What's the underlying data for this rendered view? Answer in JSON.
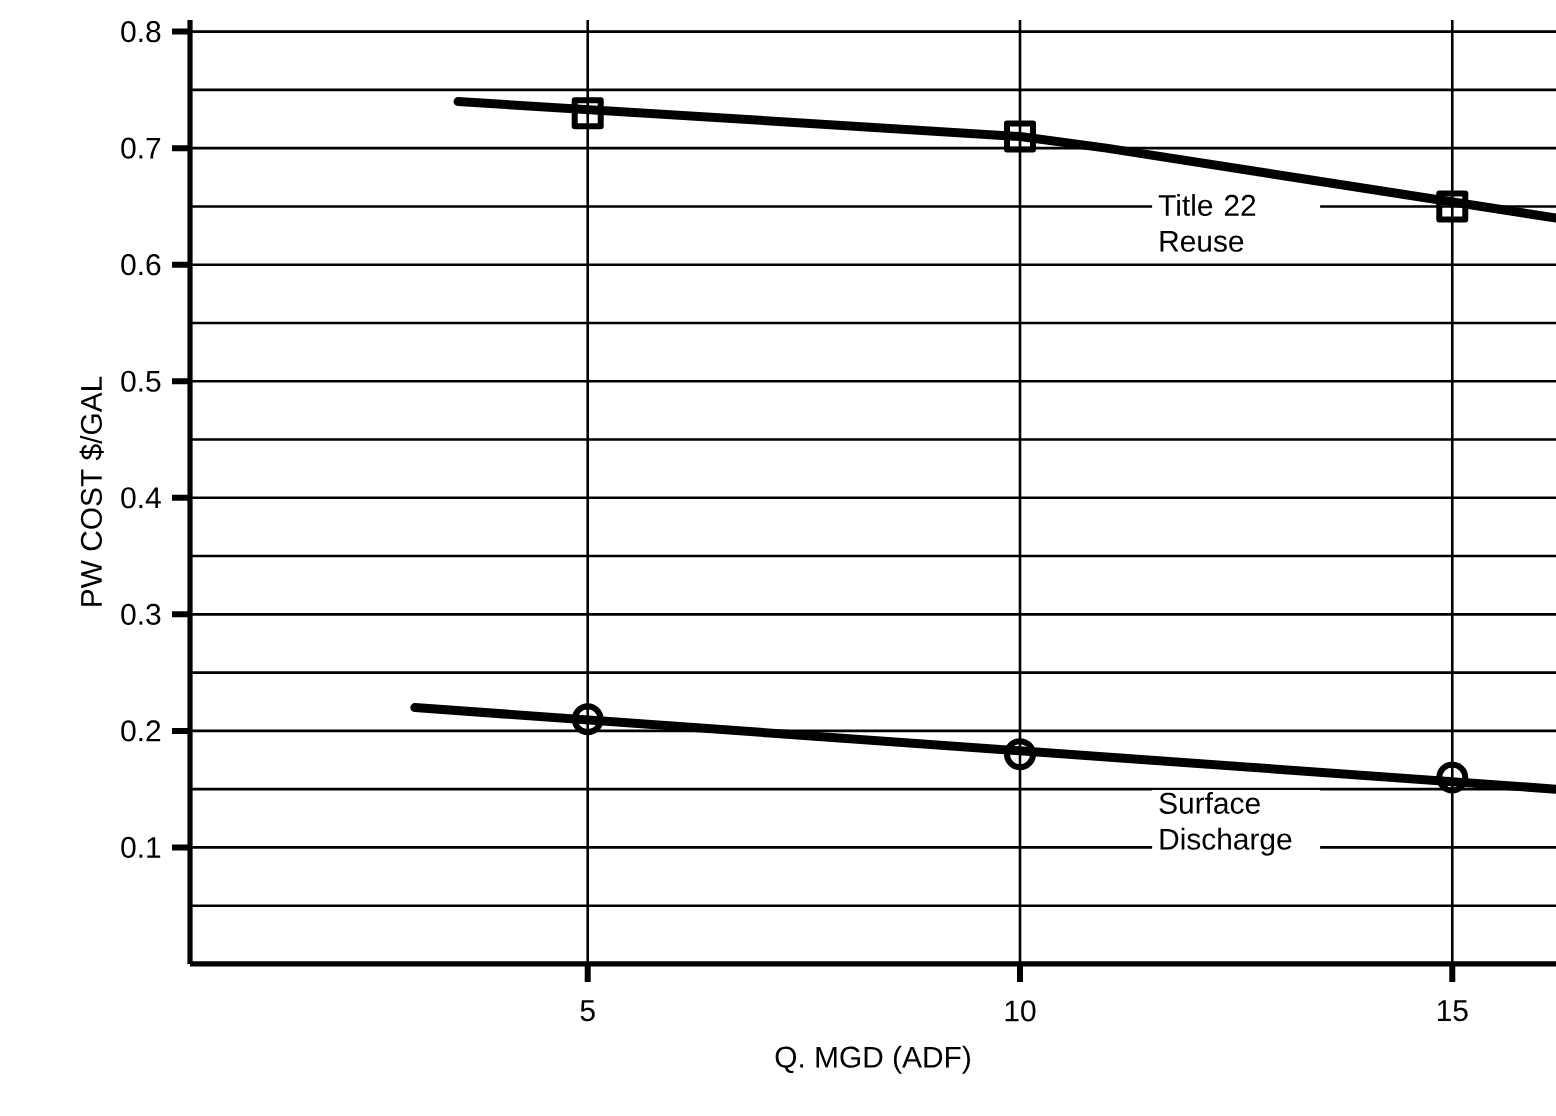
{
  "chart_data": {
    "type": "line",
    "xlabel": "Q. MGD (ADF)",
    "ylabel": "PW COST $/GAL",
    "xlim": [
      0.4,
      16.2
    ],
    "ylim": [
      0,
      0.81
    ],
    "xticks": [
      5,
      10,
      15
    ],
    "yticks": [
      {
        "value": 0.05,
        "label": null
      },
      0.1,
      {
        "value": 0.15,
        "label": null
      },
      0.2,
      {
        "value": 0.25,
        "label": null
      },
      0.3,
      {
        "value": 0.35,
        "label": null
      },
      0.4,
      {
        "value": 0.45,
        "label": null
      },
      0.5,
      {
        "value": 0.55,
        "label": null
      },
      0.6,
      {
        "value": 0.65,
        "label": null
      },
      0.7,
      {
        "value": 0.75,
        "label": null
      },
      0.8
    ],
    "grid": true,
    "series": [
      {
        "type": "scatter",
        "marker": "square",
        "color": "#000000",
        "x": [
          5,
          10,
          15
        ],
        "values": [
          0.73,
          0.71,
          0.65
        ]
      },
      {
        "name": "Title 22 Reuse",
        "marker": "none",
        "line_style": "solid",
        "color": "#000000",
        "x": [
          3.5,
          10,
          11,
          16.2
        ],
        "values": [
          0.74,
          0.71,
          0.7,
          0.64
        ]
      },
      {
        "type": "scatter",
        "marker": "circle",
        "color": "#000000",
        "x": [
          5,
          10,
          15
        ],
        "values": [
          0.21,
          0.18,
          0.16
        ]
      },
      {
        "name": "Surface Discharge",
        "marker": "none",
        "line_style": "solid",
        "color": "#000000",
        "x": [
          3,
          16.2
        ],
        "values": [
          0.22,
          0.15
        ]
      }
    ]
  }
}
